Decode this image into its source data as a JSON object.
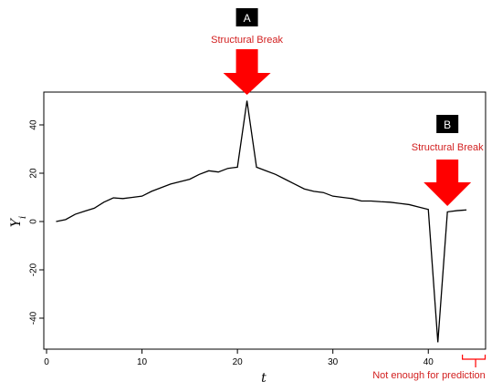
{
  "chart_data": {
    "type": "line",
    "title": "",
    "xlabel": "t",
    "ylabel": "Y_i",
    "xlim": [
      0,
      46
    ],
    "ylim": [
      -50,
      52
    ],
    "xticks": [
      0,
      10,
      20,
      30,
      40
    ],
    "yticks": [
      -40,
      -20,
      0,
      20,
      40
    ],
    "grid": false,
    "legend": "none",
    "line_color": "#000000",
    "accent_color": "#ff0000",
    "series": [
      {
        "x": [
          1,
          2,
          3,
          4,
          5,
          6,
          7,
          8,
          9,
          10,
          11,
          12,
          13,
          14,
          15,
          16,
          17,
          18,
          19,
          20,
          21,
          22,
          23,
          24,
          25,
          26,
          27,
          28,
          29,
          30,
          31,
          32,
          33,
          34,
          35,
          36,
          37,
          38,
          39,
          40,
          41,
          42,
          43,
          44
        ],
        "y": [
          0,
          0.8,
          3,
          4.3,
          5.5,
          8,
          9.8,
          9.5,
          10,
          10.5,
          12.5,
          14,
          15.5,
          16.5,
          17.5,
          19.5,
          21,
          20.5,
          22,
          22.5,
          50,
          22.5,
          21,
          19.5,
          17.5,
          15.5,
          13.5,
          12.5,
          12,
          10.5,
          10,
          9.5,
          8.5,
          8.5,
          8.2,
          8,
          7.5,
          7,
          6,
          5,
          -50,
          4,
          4.5,
          4.8
        ]
      }
    ],
    "annotations": [
      {
        "badge": "A",
        "label": "Structural Break",
        "x": 21
      },
      {
        "badge": "B",
        "label": "Structural Break",
        "x": 42
      },
      {
        "label": "Not enough for prediction",
        "x_range": [
          43,
          45
        ]
      }
    ]
  }
}
